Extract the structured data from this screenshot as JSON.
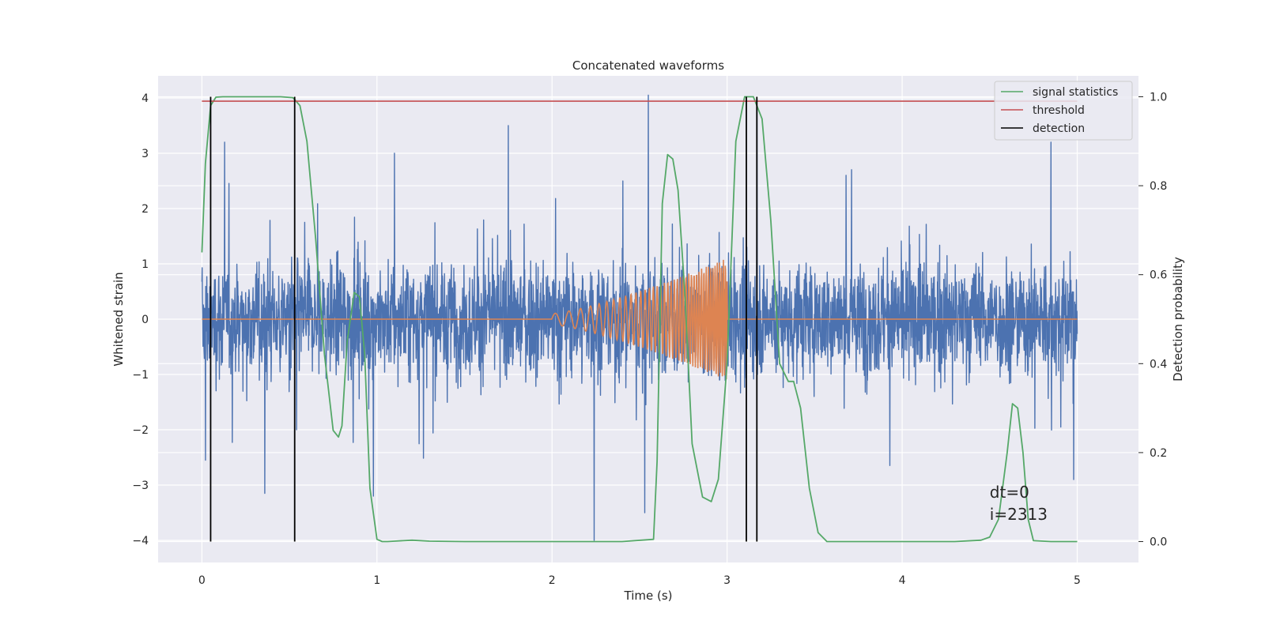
{
  "chart_data": {
    "type": "line",
    "title": "Concatenated waveforms",
    "xlabel": "Time (s)",
    "ylabel": "Whitened strain",
    "ylabel_right": "Detection probability",
    "xlim": [
      -0.25,
      5.35
    ],
    "ylim": [
      -4.4,
      4.4
    ],
    "ylim_right": [
      -0.047,
      1.047
    ],
    "xticks": [
      0,
      1,
      2,
      3,
      4,
      5
    ],
    "xtick_labels": [
      "0",
      "1",
      "2",
      "3",
      "4",
      "5"
    ],
    "yticks": [
      -4,
      -3,
      -2,
      -1,
      0,
      1,
      2,
      3,
      4
    ],
    "ytick_labels": [
      "−4",
      "−3",
      "−2",
      "−1",
      "0",
      "1",
      "2",
      "3",
      "4"
    ],
    "yticks_right": [
      0.0,
      0.2,
      0.4,
      0.6,
      0.8,
      1.0
    ],
    "ytick_labels_right": [
      "0.0",
      "0.2",
      "0.4",
      "0.6",
      "0.8",
      "1.0"
    ],
    "grid": true,
    "legend_position": "top-right",
    "series": [
      {
        "key": "strain",
        "axis": "left",
        "color": "#4c72b0",
        "kind": "noise",
        "x_range": [
          0,
          5
        ],
        "values": [],
        "envelope": 1.0,
        "spikes": [
          {
            "x": 0.02,
            "y": -2.55
          },
          {
            "x": 0.36,
            "y": -3.15
          },
          {
            "x": 0.13,
            "y": 3.2
          },
          {
            "x": 0.98,
            "y": -3.2
          },
          {
            "x": 1.75,
            "y": 3.5
          },
          {
            "x": 2.24,
            "y": -4.0
          },
          {
            "x": 2.53,
            "y": -3.5
          },
          {
            "x": 2.55,
            "y": 4.05
          },
          {
            "x": 3.17,
            "y": 3.85
          },
          {
            "x": 4.98,
            "y": -2.9
          },
          {
            "x": 4.85,
            "y": 3.2
          },
          {
            "x": 0.54,
            "y": -2.0
          },
          {
            "x": 1.1,
            "y": 3.0
          }
        ]
      },
      {
        "key": "injection",
        "axis": "left",
        "color": "#dd8452",
        "kind": "chirp",
        "x_range": [
          0,
          5
        ],
        "chirp_start": 2.0,
        "chirp_end": 3.0,
        "amp_start": 0.1,
        "amp_end": 1.1,
        "freq_start": 12,
        "freq_end": 90
      },
      {
        "name": "signal statistics",
        "axis": "right",
        "color": "#55a868",
        "x": [
          0,
          0.02,
          0.05,
          0.08,
          0.12,
          0.2,
          0.3,
          0.45,
          0.52,
          0.56,
          0.6,
          0.65,
          0.7,
          0.75,
          0.78,
          0.8,
          0.83,
          0.87,
          0.9,
          0.93,
          0.96,
          1.0,
          1.03,
          1.06,
          1.1,
          1.2,
          1.3,
          1.5,
          2.0,
          2.4,
          2.58,
          2.6,
          2.63,
          2.66,
          2.69,
          2.72,
          2.76,
          2.8,
          2.86,
          2.91,
          2.95,
          3.0,
          3.05,
          3.1,
          3.15,
          3.2,
          3.25,
          3.3,
          3.35,
          3.38,
          3.42,
          3.47,
          3.52,
          3.57,
          3.62,
          3.8,
          4.0,
          4.3,
          4.45,
          4.5,
          4.55,
          4.6,
          4.63,
          4.66,
          4.69,
          4.72,
          4.75,
          4.85,
          5.0
        ],
        "values": [
          0.65,
          0.85,
          0.98,
          0.999,
          1.0,
          1.0,
          1.0,
          1.0,
          0.998,
          0.98,
          0.9,
          0.68,
          0.42,
          0.25,
          0.235,
          0.26,
          0.45,
          0.56,
          0.55,
          0.42,
          0.12,
          0.005,
          0.0,
          0.0,
          0.001,
          0.003,
          0.001,
          0.0,
          0.0,
          0.0,
          0.005,
          0.18,
          0.76,
          0.87,
          0.86,
          0.79,
          0.55,
          0.22,
          0.1,
          0.09,
          0.14,
          0.4,
          0.9,
          1.0,
          1.0,
          0.95,
          0.72,
          0.4,
          0.36,
          0.36,
          0.3,
          0.12,
          0.02,
          0.0,
          0.0,
          0.0,
          0.0,
          0.0,
          0.003,
          0.01,
          0.05,
          0.2,
          0.31,
          0.3,
          0.2,
          0.05,
          0.002,
          0.0,
          0.0
        ]
      },
      {
        "name": "threshold",
        "axis": "right",
        "color": "#c44e52",
        "x": [
          0,
          5
        ],
        "values": [
          0.99,
          0.99
        ]
      }
    ],
    "detections": {
      "name": "detection",
      "color": "#000000",
      "x": [
        0.05,
        0.53,
        3.11,
        3.17
      ],
      "ymin": 0.0,
      "ymax": 1.0
    },
    "annotation": {
      "x": 4.5,
      "lines": [
        "dt=0",
        "i=2313"
      ]
    }
  }
}
